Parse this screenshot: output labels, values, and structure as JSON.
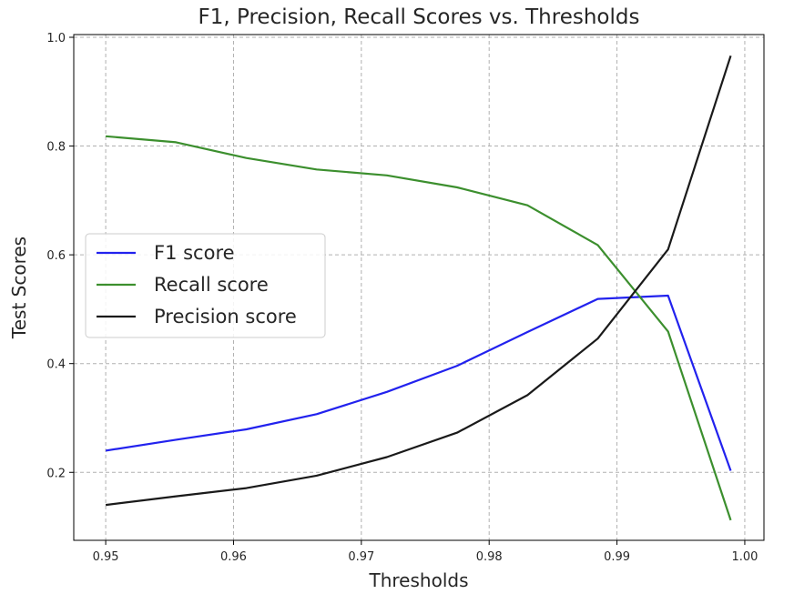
{
  "chart_data": {
    "type": "line",
    "title": "F1, Precision, Recall Scores vs. Thresholds",
    "xlabel": "Thresholds",
    "ylabel": "Test Scores",
    "xlim": [
      0.9475,
      1.0015
    ],
    "ylim": [
      0.075,
      1.005
    ],
    "xticks": [
      0.95,
      0.96,
      0.97,
      0.98,
      0.99,
      1.0
    ],
    "xtick_labels": [
      "0.95",
      "0.96",
      "0.97",
      "0.98",
      "0.99",
      "1.00"
    ],
    "yticks": [
      0.2,
      0.4,
      0.6,
      0.8,
      1.0
    ],
    "ytick_labels": [
      "0.2",
      "0.4",
      "0.6",
      "0.8",
      "1.0"
    ],
    "grid": true,
    "legend_position": "center-left",
    "x": [
      0.95,
      0.9555,
      0.961,
      0.9665,
      0.972,
      0.9775,
      0.983,
      0.9885,
      0.994,
      0.9989
    ],
    "series": [
      {
        "name": "F1 score",
        "color": "#2222ee",
        "values": [
          0.24,
          0.26,
          0.279,
          0.307,
          0.348,
          0.396,
          0.458,
          0.519,
          0.525,
          0.203
        ]
      },
      {
        "name": "Recall score",
        "color": "#3c8f2e",
        "values": [
          0.818,
          0.807,
          0.778,
          0.757,
          0.746,
          0.724,
          0.691,
          0.618,
          0.459,
          0.112
        ]
      },
      {
        "name": "Precision score",
        "color": "#1a1a1a",
        "values": [
          0.14,
          0.156,
          0.171,
          0.194,
          0.228,
          0.273,
          0.342,
          0.446,
          0.61,
          0.966
        ]
      }
    ]
  }
}
